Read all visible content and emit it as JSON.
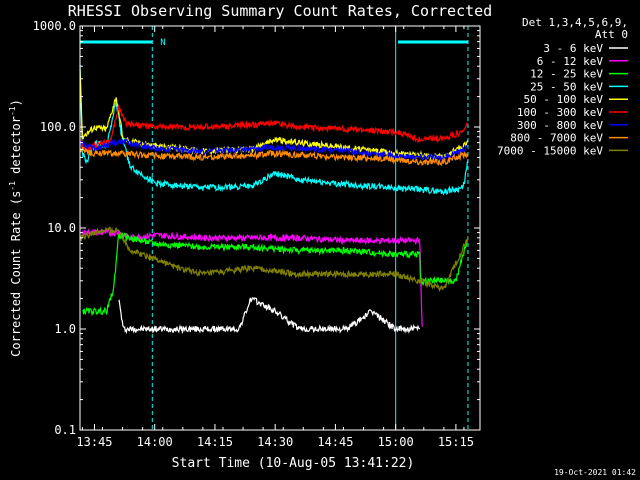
{
  "chart_data": {
    "type": "line",
    "title": "RHESSI Observing Summary Count Rates, Corrected",
    "xlabel": "Start Time (10-Aug-05 13:41:22)",
    "ylabel_main": "Corrected Count Rate (s",
    "ylabel_sup1": "-1",
    "ylabel_mid": " detector",
    "ylabel_sup2": "-1",
    "ylabel_end": ")",
    "yscale": "log",
    "ylim": [
      0.1,
      1000
    ],
    "xlim": [
      13.69,
      15.35
    ],
    "y_ticks": [
      {
        "v": 0.1,
        "label": "0.1"
      },
      {
        "v": 1,
        "label": "1.0"
      },
      {
        "v": 10,
        "label": "10.0"
      },
      {
        "v": 100,
        "label": "100.0"
      },
      {
        "v": 1000,
        "label": "1000.0"
      }
    ],
    "x_ticks": [
      {
        "v": 13.75,
        "label": "13:45"
      },
      {
        "v": 14.0,
        "label": "14:00"
      },
      {
        "v": 14.25,
        "label": "14:15"
      },
      {
        "v": 14.5,
        "label": "14:30"
      },
      {
        "v": 14.75,
        "label": "14:45"
      },
      {
        "v": 15.0,
        "label": "15:00"
      },
      {
        "v": 15.25,
        "label": "15:15"
      }
    ],
    "legend_header": [
      "Det 1,3,4,5,6,9,",
      "Att 0"
    ],
    "night_bars": [
      {
        "x0": 13.69,
        "x1": 13.99,
        "label": "N"
      },
      {
        "x0": 15.01,
        "x1": 15.3,
        "label": ""
      }
    ],
    "vlines": [
      13.69,
      13.99,
      15.0,
      15.3
    ],
    "series": [
      {
        "name": "3 - 6 keV",
        "color": "#ffffff",
        "points": [
          [
            13.85,
            2.0
          ],
          [
            13.87,
            1.0
          ],
          [
            13.95,
            1.0
          ],
          [
            14.1,
            1.0
          ],
          [
            14.35,
            1.0
          ],
          [
            14.4,
            2.0
          ],
          [
            14.5,
            1.5
          ],
          [
            14.6,
            1.0
          ],
          [
            14.8,
            1.0
          ],
          [
            14.9,
            1.5
          ],
          [
            15.0,
            1.0
          ],
          [
            15.1,
            1.0
          ]
        ]
      },
      {
        "name": "6 - 12 keV",
        "color": "#ff00ff",
        "points": [
          [
            13.7,
            9
          ],
          [
            13.85,
            9
          ],
          [
            13.9,
            8
          ],
          [
            14.0,
            8.5
          ],
          [
            14.2,
            8
          ],
          [
            14.4,
            8
          ],
          [
            14.6,
            8
          ],
          [
            14.8,
            7.5
          ],
          [
            15.0,
            7.5
          ],
          [
            15.1,
            7.5
          ],
          [
            15.11,
            1.0
          ]
        ]
      },
      {
        "name": "12 - 25 keV",
        "color": "#00ff00",
        "points": [
          [
            13.7,
            1.5
          ],
          [
            13.8,
            1.5
          ],
          [
            13.83,
            2.5
          ],
          [
            13.85,
            8.5
          ],
          [
            14.0,
            7
          ],
          [
            14.2,
            6.5
          ],
          [
            14.4,
            6.5
          ],
          [
            14.6,
            6
          ],
          [
            14.8,
            6
          ],
          [
            15.0,
            5.5
          ],
          [
            15.1,
            5.5
          ],
          [
            15.1,
            3
          ],
          [
            15.25,
            3
          ],
          [
            15.3,
            8
          ]
        ]
      },
      {
        "name": "25 - 50 keV",
        "color": "#00ffff",
        "points": [
          [
            13.69,
            400
          ],
          [
            13.7,
            55
          ],
          [
            13.72,
            45
          ],
          [
            13.75,
            70
          ],
          [
            13.8,
            65
          ],
          [
            13.84,
            180
          ],
          [
            13.86,
            90
          ],
          [
            13.9,
            40
          ],
          [
            14.0,
            28
          ],
          [
            14.2,
            25
          ],
          [
            14.4,
            26
          ],
          [
            14.5,
            35
          ],
          [
            14.6,
            30
          ],
          [
            14.8,
            27
          ],
          [
            15.0,
            25
          ],
          [
            15.2,
            23
          ],
          [
            15.28,
            25
          ],
          [
            15.3,
            45
          ]
        ]
      },
      {
        "name": "50 - 100 keV",
        "color": "#ffff00",
        "points": [
          [
            13.69,
            400
          ],
          [
            13.7,
            80
          ],
          [
            13.75,
            100
          ],
          [
            13.8,
            95
          ],
          [
            13.84,
            200
          ],
          [
            13.87,
            75
          ],
          [
            14.0,
            65
          ],
          [
            14.2,
            58
          ],
          [
            14.4,
            60
          ],
          [
            14.5,
            75
          ],
          [
            14.6,
            70
          ],
          [
            14.8,
            62
          ],
          [
            15.0,
            55
          ],
          [
            15.2,
            50
          ],
          [
            15.3,
            70
          ]
        ]
      },
      {
        "name": "100 - 300 keV",
        "color": "#ff0000",
        "points": [
          [
            13.69,
            75
          ],
          [
            13.72,
            60
          ],
          [
            13.78,
            70
          ],
          [
            13.82,
            75
          ],
          [
            13.85,
            160
          ],
          [
            13.88,
            110
          ],
          [
            14.0,
            100
          ],
          [
            14.2,
            100
          ],
          [
            14.4,
            105
          ],
          [
            14.5,
            110
          ],
          [
            14.6,
            100
          ],
          [
            14.8,
            95
          ],
          [
            15.0,
            90
          ],
          [
            15.1,
            75
          ],
          [
            15.2,
            78
          ],
          [
            15.28,
            90
          ],
          [
            15.3,
            110
          ]
        ]
      },
      {
        "name": "300 - 800 keV",
        "color": "#0000ff",
        "points": [
          [
            13.69,
            70
          ],
          [
            13.75,
            62
          ],
          [
            13.82,
            68
          ],
          [
            13.86,
            72
          ],
          [
            14.0,
            62
          ],
          [
            14.2,
            58
          ],
          [
            14.4,
            60
          ],
          [
            14.5,
            64
          ],
          [
            14.6,
            62
          ],
          [
            14.8,
            58
          ],
          [
            15.0,
            52
          ],
          [
            15.1,
            50
          ],
          [
            15.2,
            50
          ],
          [
            15.3,
            62
          ]
        ]
      },
      {
        "name": "800 - 7000 keV",
        "color": "#ff8c00",
        "points": [
          [
            13.69,
            60
          ],
          [
            13.75,
            55
          ],
          [
            13.85,
            55
          ],
          [
            14.0,
            52
          ],
          [
            14.2,
            50
          ],
          [
            14.4,
            52
          ],
          [
            14.5,
            55
          ],
          [
            14.6,
            53
          ],
          [
            14.8,
            50
          ],
          [
            15.0,
            48
          ],
          [
            15.1,
            45
          ],
          [
            15.2,
            45
          ],
          [
            15.3,
            55
          ]
        ]
      },
      {
        "name": "7000 - 15000 keV",
        "color": "#808000",
        "points": [
          [
            13.69,
            8
          ],
          [
            13.75,
            9
          ],
          [
            13.8,
            9.5
          ],
          [
            13.85,
            9.5
          ],
          [
            13.9,
            6
          ],
          [
            14.0,
            5
          ],
          [
            14.1,
            4
          ],
          [
            14.2,
            3.5
          ],
          [
            14.4,
            4
          ],
          [
            14.6,
            3.5
          ],
          [
            14.8,
            3.5
          ],
          [
            15.0,
            3.5
          ],
          [
            15.1,
            3
          ],
          [
            15.2,
            2.5
          ],
          [
            15.3,
            8
          ]
        ]
      }
    ]
  },
  "footer": {
    "timestamp": "19-Oct-2021 01:42"
  }
}
